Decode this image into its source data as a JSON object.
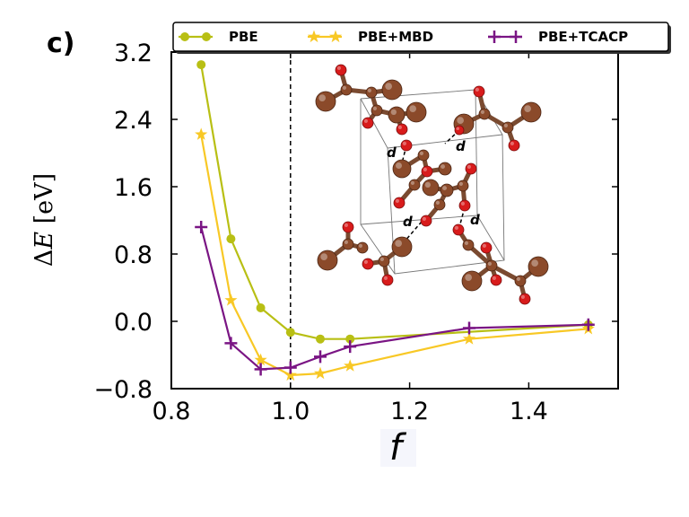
{
  "panel_label": "c)",
  "colors": {
    "pbe": "#b8bf14",
    "mbd": "#f8c825",
    "tcacp": "#7a1584",
    "atom_c": "#8b4a2a",
    "atom_o": "#d81b1b"
  },
  "inset": {
    "bond_labels": [
      "d",
      "d",
      "d",
      "d"
    ]
  },
  "chart_data": {
    "type": "line",
    "title": "",
    "xlabel": "f",
    "ylabel_prefix": "Δ",
    "ylabel_symbol": "E",
    "ylabel_unit": " [eV]",
    "xlim": [
      0.8,
      1.55
    ],
    "ylim": [
      -0.8,
      3.2
    ],
    "x_ticks": [
      0.8,
      1.0,
      1.2,
      1.4
    ],
    "x_tick_labels": [
      "0.8",
      "1.0",
      "1.2",
      "1.4"
    ],
    "y_ticks": [
      -0.8,
      0.0,
      0.8,
      1.6,
      2.4,
      3.2
    ],
    "y_tick_labels": [
      "−0.8",
      "0.0",
      "0.8",
      "1.6",
      "2.4",
      "3.2"
    ],
    "reference_line_x": 1.0,
    "legend_position": "top-right",
    "series": [
      {
        "name": "PBE",
        "marker": "circle",
        "color_key": "pbe",
        "x": [
          0.85,
          0.9,
          0.95,
          1.0,
          1.05,
          1.1,
          1.5
        ],
        "y": [
          3.05,
          0.98,
          0.16,
          -0.13,
          -0.21,
          -0.21,
          -0.04
        ]
      },
      {
        "name": "PBE+MBD",
        "marker": "star",
        "color_key": "mbd",
        "x": [
          0.85,
          0.9,
          0.95,
          1.0,
          1.05,
          1.1,
          1.3,
          1.5
        ],
        "y": [
          2.22,
          0.25,
          -0.46,
          -0.64,
          -0.62,
          -0.53,
          -0.21,
          -0.09
        ]
      },
      {
        "name": "PBE+TCACP",
        "marker": "plus",
        "color_key": "tcacp",
        "x": [
          0.85,
          0.9,
          0.95,
          1.0,
          1.05,
          1.1,
          1.3,
          1.5
        ],
        "y": [
          1.12,
          -0.26,
          -0.57,
          -0.55,
          -0.42,
          -0.3,
          -0.08,
          -0.04
        ]
      }
    ]
  }
}
